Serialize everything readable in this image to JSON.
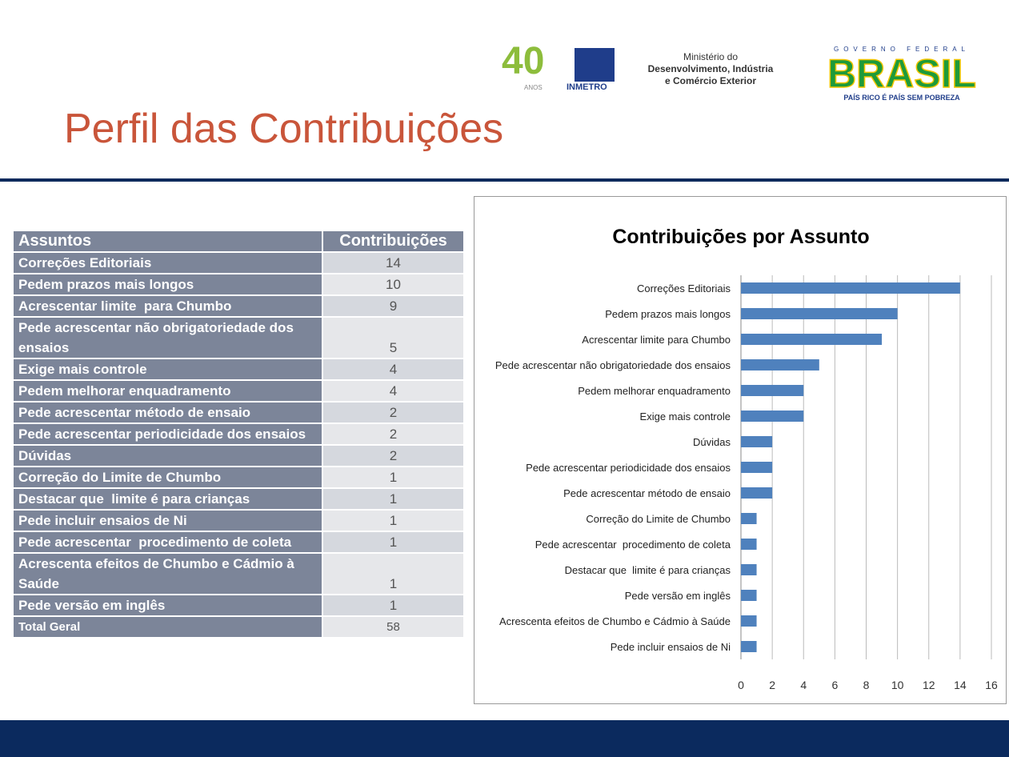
{
  "header": {
    "title": "Perfil das Contribuições",
    "logos": {
      "years": "40",
      "years_label": "ANOS",
      "institute": "INMETRO",
      "ministry": [
        "Ministério do",
        "Desenvolvimento, Indústria",
        "e Comércio Exterior"
      ],
      "government": "GOVERNO FEDERAL",
      "brand": "BRASIL",
      "slogan": "PAÍS RICO É PAÍS SEM POBREZA"
    }
  },
  "table": {
    "columns": [
      "Assuntos",
      "Contribuições"
    ],
    "rows": [
      [
        "Correções Editoriais",
        14
      ],
      [
        "Pedem prazos mais longos",
        10
      ],
      [
        "Acrescentar limite  para Chumbo",
        9
      ],
      [
        "Pede acrescentar não obrigatoriedade dos ensaios",
        5
      ],
      [
        "Exige mais controle",
        4
      ],
      [
        "Pedem melhorar enquadramento",
        4
      ],
      [
        "Pede acrescentar método de ensaio",
        2
      ],
      [
        "Pede acrescentar periodicidade dos ensaios",
        2
      ],
      [
        "Dúvidas",
        2
      ],
      [
        "Correção do Limite de Chumbo",
        1
      ],
      [
        "Destacar que  limite é para crianças",
        1
      ],
      [
        "Pede incluir ensaios de Ni",
        1
      ],
      [
        "Pede acrescentar  procedimento de coleta",
        1
      ],
      [
        "Acrescenta efeitos de Chumbo e Cádmio à Saúde",
        1
      ],
      [
        "Pede versão em inglês",
        1
      ]
    ],
    "total": [
      "Total Geral",
      58
    ]
  },
  "chart_data": {
    "type": "bar",
    "orientation": "horizontal",
    "title": "Contribuições por Assunto",
    "categories": [
      "Correções Editoriais",
      "Pedem prazos mais longos",
      "Acrescentar limite para Chumbo",
      "Pede acrescentar não obrigatoriedade dos ensaios",
      "Pedem melhorar enquadramento",
      "Exige mais controle",
      "Dúvidas",
      "Pede acrescentar periodicidade dos ensaios",
      "Pede acrescentar método de ensaio",
      "Correção do Limite de Chumbo",
      "Pede acrescentar  procedimento de coleta",
      "Destacar que  limite é para crianças",
      "Pede versão em inglês",
      "Acrescenta efeitos de Chumbo e Cádmio à Saúde",
      "Pede incluir ensaios de Ni"
    ],
    "values": [
      14,
      10,
      9,
      5,
      4,
      4,
      2,
      2,
      2,
      1,
      1,
      1,
      1,
      1,
      1
    ],
    "color": "#4f81bd",
    "xlim": [
      0,
      16
    ],
    "xticks": [
      0,
      2,
      4,
      6,
      8,
      10,
      12,
      14,
      16
    ],
    "grid": true
  }
}
